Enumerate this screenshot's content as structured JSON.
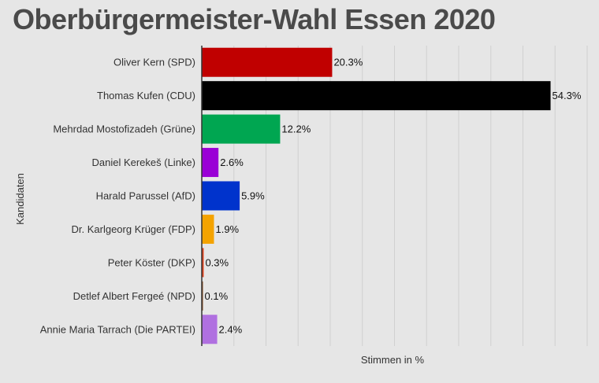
{
  "chart_data": {
    "type": "bar",
    "orientation": "horizontal",
    "title": "Oberbürgermeister-Wahl Essen 2020",
    "xlabel": "Stimmen in %",
    "ylabel": "Kandidaten",
    "xlim": [
      0,
      60
    ],
    "grid": true,
    "legend": "none",
    "categories": [
      "Oliver Kern (SPD)",
      "Thomas Kufen (CDU)",
      "Mehrdad Mostofizadeh (Grüne)",
      "Daniel Kerekeš (Linke)",
      "Harald Parussel (AfD)",
      "Dr. Karlgeorg Krüger (FDP)",
      "Peter Köster (DKP)",
      "Detlef Albert Fergeé (NPD)",
      "Annie Maria Tarrach (Die PARTEI)"
    ],
    "values": [
      20.3,
      54.3,
      12.2,
      2.6,
      5.9,
      1.9,
      0.3,
      0.1,
      2.4
    ],
    "value_labels": [
      "20.3%",
      "54.3%",
      "12.2%",
      "2.6%",
      "5.9%",
      "1.9%",
      "0.3%",
      "0.1%",
      "2.4%"
    ],
    "colors": [
      "#c00000",
      "#000000",
      "#00a651",
      "#9a00d6",
      "#0033cc",
      "#f4a300",
      "#e0401a",
      "#8b4513",
      "#b070e0"
    ]
  }
}
